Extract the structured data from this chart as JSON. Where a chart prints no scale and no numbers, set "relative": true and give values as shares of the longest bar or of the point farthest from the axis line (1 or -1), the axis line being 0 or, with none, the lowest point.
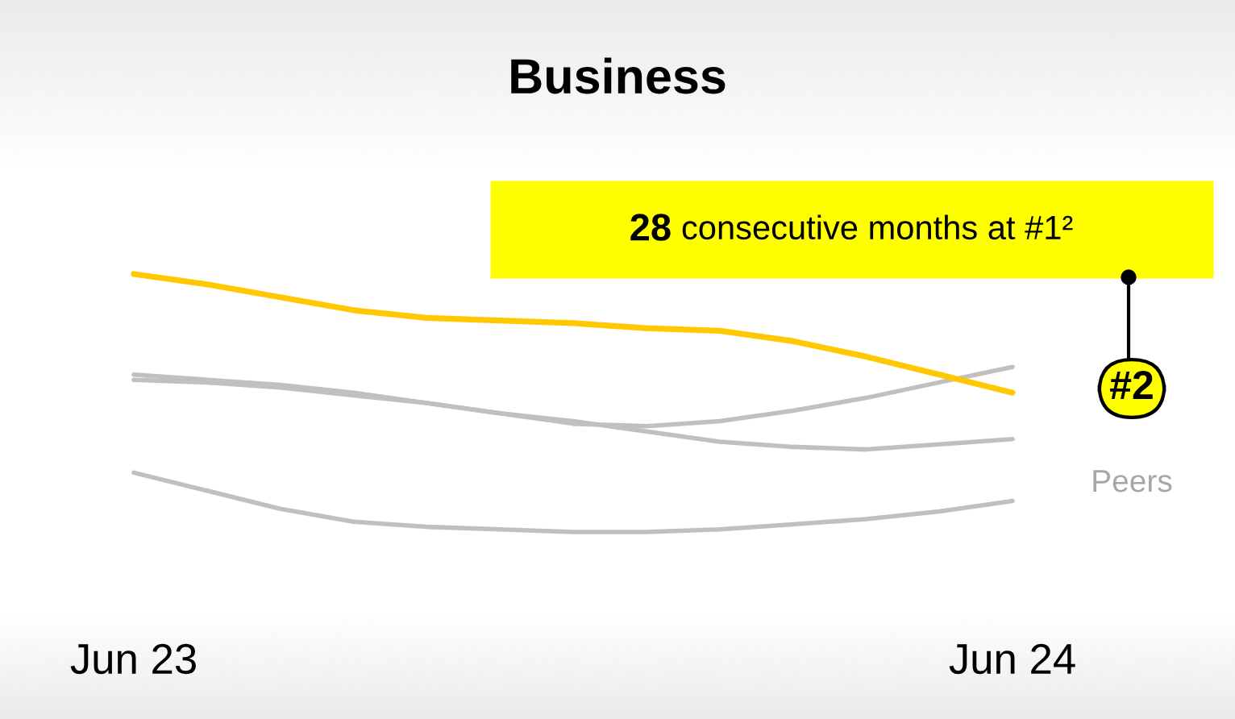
{
  "chart_data": {
    "type": "line",
    "title": "Business",
    "relative": true,
    "legend": false,
    "marker": "none",
    "line_style": "solid",
    "categories": [
      "Jun 23",
      null,
      null,
      null,
      null,
      null,
      null,
      null,
      null,
      null,
      null,
      null,
      "Jun 24"
    ],
    "series": [
      {
        "color": "#c0c0c0",
        "values": [
          0.61,
          0.59,
          0.57,
          0.54,
          0.5,
          0.46,
          0.42,
          0.41,
          0.43,
          0.47,
          0.52,
          0.58,
          0.64
        ]
      },
      {
        "color": "#c0c0c0",
        "values": [
          0.59,
          0.58,
          0.56,
          0.53,
          0.5,
          0.46,
          0.43,
          0.39,
          0.35,
          0.33,
          0.32,
          0.34,
          0.36
        ]
      },
      {
        "color": "#c0c0c0",
        "values": [
          0.23,
          0.16,
          0.09,
          0.04,
          0.02,
          0.01,
          0,
          0,
          0.01,
          0.03,
          0.05,
          0.08,
          0.12
        ]
      },
      {
        "color": "#ffc800",
        "values": [
          1.0,
          0.96,
          0.91,
          0.86,
          0.83,
          0.82,
          0.81,
          0.79,
          0.78,
          0.74,
          0.68,
          0.61,
          0.54
        ]
      }
    ],
    "annotations": [
      "28 consecutive months at #1²",
      "#2",
      "Peers"
    ]
  }
}
